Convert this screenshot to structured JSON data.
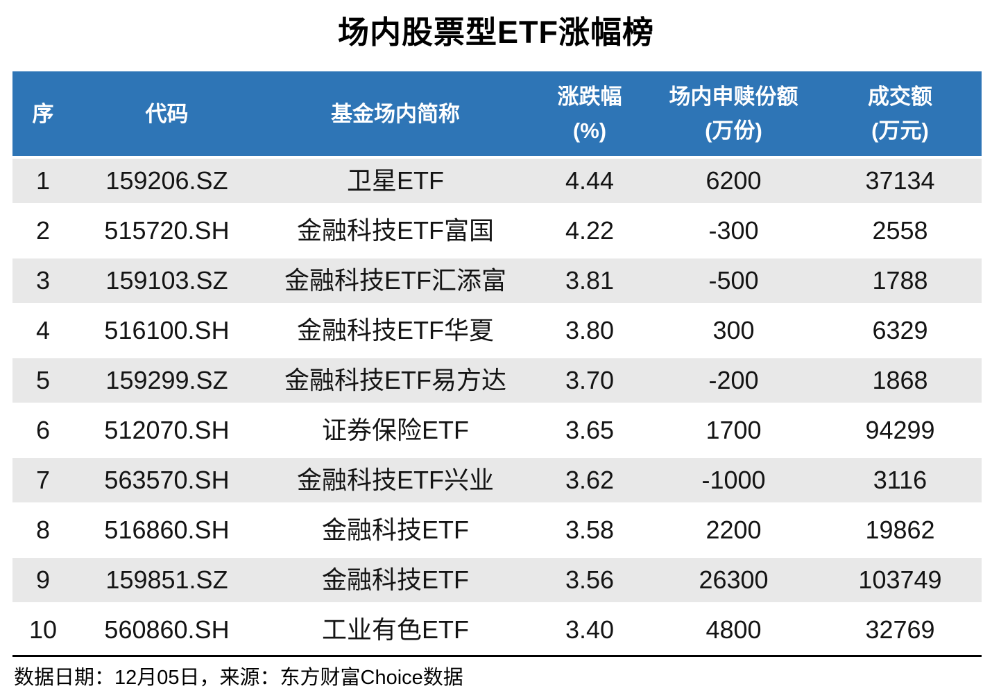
{
  "title": "场内股票型ETF涨幅榜",
  "colors": {
    "header_bg": "#2E75B6",
    "header_text": "#FFFFFF",
    "row_alt_bg": "#E8E8E8",
    "body_text": "#141414",
    "rule": "#000000"
  },
  "header": {
    "col_seq": "序",
    "col_code": "代码",
    "col_name": "基金场内简称",
    "col_change": "涨跌幅",
    "col_change_unit": "(%)",
    "col_shares": "场内申赎份额",
    "col_shares_unit": "(万份)",
    "col_turnover": "成交额",
    "col_turnover_unit": "(万元)"
  },
  "rows": [
    {
      "seq": "1",
      "code": "159206.SZ",
      "name": "卫星ETF",
      "change": "4.44",
      "shares": "6200",
      "turnover": "37134"
    },
    {
      "seq": "2",
      "code": "515720.SH",
      "name": "金融科技ETF富国",
      "change": "4.22",
      "shares": "-300",
      "turnover": "2558"
    },
    {
      "seq": "3",
      "code": "159103.SZ",
      "name": "金融科技ETF汇添富",
      "change": "3.81",
      "shares": "-500",
      "turnover": "1788"
    },
    {
      "seq": "4",
      "code": "516100.SH",
      "name": "金融科技ETF华夏",
      "change": "3.80",
      "shares": "300",
      "turnover": "6329"
    },
    {
      "seq": "5",
      "code": "159299.SZ",
      "name": "金融科技ETF易方达",
      "change": "3.70",
      "shares": "-200",
      "turnover": "1868"
    },
    {
      "seq": "6",
      "code": "512070.SH",
      "name": "证券保险ETF",
      "change": "3.65",
      "shares": "1700",
      "turnover": "94299"
    },
    {
      "seq": "7",
      "code": "563570.SH",
      "name": "金融科技ETF兴业",
      "change": "3.62",
      "shares": "-1000",
      "turnover": "3116"
    },
    {
      "seq": "8",
      "code": "516860.SH",
      "name": "金融科技ETF",
      "change": "3.58",
      "shares": "2200",
      "turnover": "19862"
    },
    {
      "seq": "9",
      "code": "159851.SZ",
      "name": "金融科技ETF",
      "change": "3.56",
      "shares": "26300",
      "turnover": "103749"
    },
    {
      "seq": "10",
      "code": "560860.SH",
      "name": "工业有色ETF",
      "change": "3.40",
      "shares": "4800",
      "turnover": "32769"
    }
  ],
  "footer": {
    "note": "数据日期：12月05日，来源：东方财富Choice数据"
  },
  "chart_data": {
    "type": "table",
    "title": "场内股票型ETF涨幅榜",
    "columns": [
      "序",
      "代码",
      "基金场内简称",
      "涨跌幅(%)",
      "场内申赎份额(万份)",
      "成交额(万元)"
    ],
    "rows": [
      [
        1,
        "159206.SZ",
        "卫星ETF",
        4.44,
        6200,
        37134
      ],
      [
        2,
        "515720.SH",
        "金融科技ETF富国",
        4.22,
        -300,
        2558
      ],
      [
        3,
        "159103.SZ",
        "金融科技ETF汇添富",
        3.81,
        -500,
        1788
      ],
      [
        4,
        "516100.SH",
        "金融科技ETF华夏",
        3.8,
        300,
        6329
      ],
      [
        5,
        "159299.SZ",
        "金融科技ETF易方达",
        3.7,
        -200,
        1868
      ],
      [
        6,
        "512070.SH",
        "证券保险ETF",
        3.65,
        1700,
        94299
      ],
      [
        7,
        "563570.SH",
        "金融科技ETF兴业",
        3.62,
        -1000,
        3116
      ],
      [
        8,
        "516860.SH",
        "金融科技ETF",
        3.58,
        2200,
        19862
      ],
      [
        9,
        "159851.SZ",
        "金融科技ETF",
        3.56,
        26300,
        103749
      ],
      [
        10,
        "560860.SH",
        "工业有色ETF",
        3.4,
        4800,
        32769
      ]
    ],
    "source_note": "数据日期：12月05日，来源：东方财富Choice数据",
    "layout": {
      "header_style": "blue-band",
      "row_striping": "odd-grey",
      "alignment": "center"
    }
  }
}
